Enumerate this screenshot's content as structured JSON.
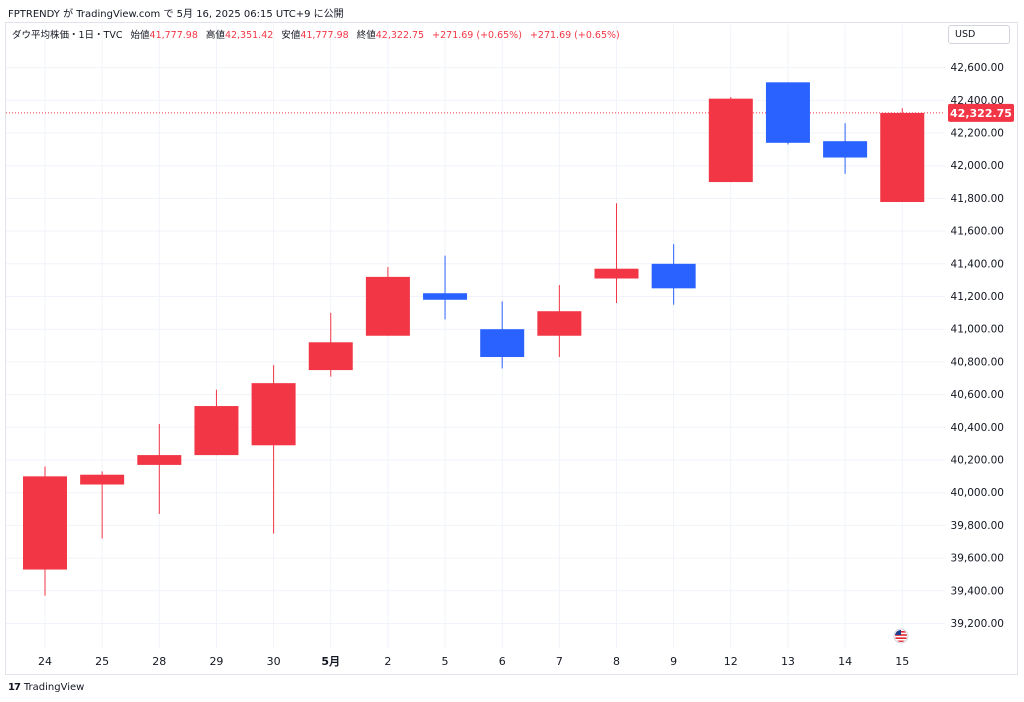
{
  "header": {
    "published_line": "FPTRENDY が TradingView.com で 5月 16, 2025 06:15 UTC+9 に公開"
  },
  "legend": {
    "symbol": "ダウ平均株価・1日・TVC",
    "open_label": "始値",
    "open": "41,777.98",
    "high_label": "高値",
    "high": "42,351.42",
    "low_label": "安値",
    "low": "41,777.98",
    "close_label": "終値",
    "close": "42,322.75",
    "change1": "+271.69 (+0.65%)",
    "change2": "+271.69 (+0.65%)"
  },
  "currency_button": "USD",
  "footer": {
    "brand": "TradingView",
    "logo_glyph": "17"
  },
  "colors": {
    "up": "#f23645",
    "down": "#2962ff",
    "grid": "#f0f3fa",
    "axis_text": "#131722"
  },
  "chart_data": {
    "type": "candlestick",
    "title": "",
    "ylim": [
      39100,
      42800
    ],
    "yticks": [
      39200,
      39400,
      39600,
      39800,
      40000,
      40200,
      40400,
      40600,
      40800,
      41000,
      41200,
      41400,
      41600,
      41800,
      42000,
      42200,
      42400,
      42600
    ],
    "ytick_labels": [
      "39,200.00",
      "39,400.00",
      "39,600.00",
      "39,800.00",
      "40,000.00",
      "40,200.00",
      "40,400.00",
      "40,600.00",
      "40,800.00",
      "41,000.00",
      "41,200.00",
      "41,400.00",
      "41,600.00",
      "41,800.00",
      "42,000.00",
      "42,200.00",
      "42,400.00",
      "42,600.00"
    ],
    "categories": [
      "24",
      "25",
      "28",
      "29",
      "30",
      "5月",
      "2",
      "5",
      "6",
      "7",
      "8",
      "9",
      "12",
      "13",
      "14",
      "15"
    ],
    "candles": [
      {
        "open": 39530,
        "high": 40160,
        "low": 39370,
        "close": 40100
      },
      {
        "open": 40050,
        "high": 40130,
        "low": 39720,
        "close": 40110
      },
      {
        "open": 40170,
        "high": 40420,
        "low": 39870,
        "close": 40230
      },
      {
        "open": 40230,
        "high": 40630,
        "low": 40230,
        "close": 40530
      },
      {
        "open": 40290,
        "high": 40780,
        "low": 39750,
        "close": 40670
      },
      {
        "open": 40750,
        "high": 41100,
        "low": 40710,
        "close": 40920
      },
      {
        "open": 40960,
        "high": 41380,
        "low": 40960,
        "close": 41320
      },
      {
        "open": 41220,
        "high": 41450,
        "low": 41060,
        "close": 41180
      },
      {
        "open": 41000,
        "high": 41170,
        "low": 40760,
        "close": 40830
      },
      {
        "open": 40960,
        "high": 41270,
        "low": 40830,
        "close": 41110
      },
      {
        "open": 41310,
        "high": 41770,
        "low": 41160,
        "close": 41370
      },
      {
        "open": 41400,
        "high": 41520,
        "low": 41150,
        "close": 41250
      },
      {
        "open": 41900,
        "high": 42420,
        "low": 41900,
        "close": 42410
      },
      {
        "open": 42510,
        "high": 42510,
        "low": 42130,
        "close": 42140
      },
      {
        "open": 42150,
        "high": 42260,
        "low": 41950,
        "close": 42050
      },
      {
        "open": 41777.98,
        "high": 42351.42,
        "low": 41777.98,
        "close": 42322.75
      }
    ],
    "last_price": 42322.75,
    "last_price_label": "42,322.75",
    "bold_categories": [
      "5月"
    ],
    "grid": true
  }
}
